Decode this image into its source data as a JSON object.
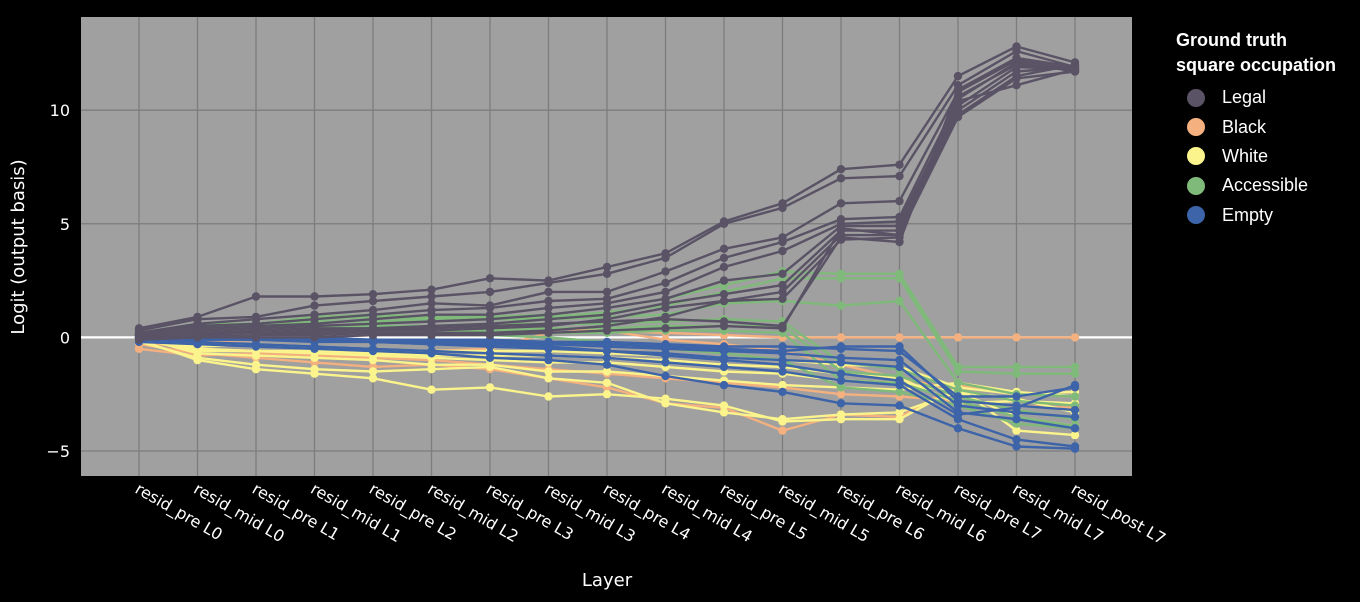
{
  "chart_data": {
    "type": "line",
    "xlabel": "Layer",
    "ylabel": "Logit (output basis)",
    "ylim": [
      -6.1,
      14.1
    ],
    "yticks": [
      -5,
      0,
      5,
      10
    ],
    "ytick_labels": [
      "−5",
      "0",
      "5",
      "10"
    ],
    "zero_line": true,
    "grid": true,
    "legend_position": "right",
    "categories": [
      "resid_pre L0",
      "resid_mid L0",
      "resid_pre L1",
      "resid_mid L1",
      "resid_pre L2",
      "resid_mid L2",
      "resid_pre L3",
      "resid_mid L3",
      "resid_pre L4",
      "resid_mid L4",
      "resid_pre L5",
      "resid_mid L5",
      "resid_pre L6",
      "resid_mid L6",
      "resid_pre L7",
      "resid_mid L7",
      "resid_post L7"
    ],
    "legend": {
      "title_lines": [
        "Ground truth",
        "square occupation"
      ],
      "items": [
        {
          "label": "Legal",
          "color": "#5a5366"
        },
        {
          "label": "Black",
          "color": "#f4b07e"
        },
        {
          "label": "White",
          "color": "#fbf48c"
        },
        {
          "label": "Accessible",
          "color": "#7fba7a"
        },
        {
          "label": "Empty",
          "color": "#3d63a8"
        }
      ]
    },
    "series": [
      {
        "group": "Black",
        "values": [
          -0.5,
          -0.8,
          -0.7,
          -0.8,
          -0.9,
          -1.0,
          -1.2,
          -1.4,
          -1.6,
          -1.8,
          -2.0,
          -2.2,
          -2.5,
          -2.6,
          -2.8,
          -3.0,
          -3.1
        ]
      },
      {
        "group": "Black",
        "values": [
          -0.3,
          -0.7,
          -0.9,
          -1.1,
          -1.3,
          -1.2,
          -1.4,
          -1.8,
          -2.2,
          -2.9,
          -3.1,
          -4.1,
          -3.4,
          -3.5,
          -2.1,
          -2.5,
          -2.6
        ]
      },
      {
        "group": "Black",
        "values": [
          -0.2,
          -0.5,
          -0.6,
          -0.7,
          -0.8,
          -0.6,
          -0.5,
          0.2,
          0.3,
          -0.1,
          -0.3,
          -0.6,
          -1.2,
          -1.8,
          -2.3,
          -2.8,
          -3.0
        ]
      },
      {
        "group": "Black",
        "values": [
          -0.1,
          -0.2,
          -0.1,
          0.0,
          0.1,
          0.2,
          0.3,
          0.4,
          0.3,
          0.2,
          0.1,
          0.0,
          0.0,
          0.0,
          0.0,
          0.0,
          0.0
        ]
      },
      {
        "group": "White",
        "values": [
          -0.1,
          -1.0,
          -1.4,
          -1.6,
          -1.8,
          -2.3,
          -2.2,
          -2.6,
          -2.5,
          -2.7,
          -3.0,
          -3.7,
          -3.6,
          -3.6,
          -2.2,
          -4.1,
          -4.3
        ]
      },
      {
        "group": "White",
        "values": [
          -0.2,
          -0.9,
          -1.2,
          -1.4,
          -1.5,
          -1.4,
          -1.3,
          -1.8,
          -2.0,
          -2.9,
          -3.3,
          -3.6,
          -3.4,
          -3.3,
          -2.4,
          -3.5,
          -3.9
        ]
      },
      {
        "group": "White",
        "values": [
          0.0,
          -0.7,
          -0.8,
          -0.9,
          -1.0,
          -1.2,
          -1.2,
          -1.5,
          -1.5,
          -1.7,
          -1.9,
          -2.1,
          -2.2,
          -2.3,
          -2.0,
          -2.4,
          -2.6
        ]
      },
      {
        "group": "White",
        "values": [
          0.1,
          -0.5,
          -0.6,
          -0.7,
          -0.8,
          -0.9,
          -1.0,
          -1.1,
          -1.1,
          -1.3,
          -1.5,
          -1.6,
          -1.9,
          -2.0,
          -2.4,
          -2.7,
          -3.3
        ]
      },
      {
        "group": "White",
        "values": [
          0.0,
          -0.6,
          -0.6,
          -0.6,
          -0.7,
          -0.8,
          -0.8,
          -0.8,
          -0.9,
          -1.0,
          -1.2,
          -1.3,
          -1.6,
          -1.8,
          -2.9,
          -2.8,
          -2.9
        ]
      },
      {
        "group": "White",
        "values": [
          -0.1,
          -0.4,
          -0.3,
          -0.4,
          -0.5,
          -0.6,
          -0.6,
          -0.6,
          -0.7,
          -0.8,
          -0.9,
          -1.0,
          -1.2,
          -1.3,
          -2.2,
          -2.5,
          -2.4
        ]
      },
      {
        "group": "Accessible",
        "values": [
          0.2,
          0.5,
          0.6,
          0.9,
          1.0,
          0.9,
          0.9,
          1.0,
          1.3,
          1.7,
          2.3,
          2.9,
          2.8,
          2.8,
          -1.3,
          -1.3,
          -1.3
        ]
      },
      {
        "group": "Accessible",
        "values": [
          0.1,
          0.4,
          0.5,
          0.8,
          0.9,
          0.8,
          0.8,
          0.9,
          1.1,
          1.4,
          2.0,
          2.6,
          2.6,
          2.6,
          -1.5,
          -1.6,
          -1.6
        ]
      },
      {
        "group": "Accessible",
        "values": [
          0.2,
          0.6,
          0.6,
          0.7,
          0.7,
          0.8,
          0.8,
          0.8,
          0.9,
          1.0,
          1.5,
          1.6,
          1.4,
          1.6,
          -2.0,
          -2.5,
          -2.6
        ]
      },
      {
        "group": "Accessible",
        "values": [
          0.1,
          0.3,
          0.4,
          0.5,
          0.5,
          0.5,
          0.6,
          0.6,
          0.6,
          0.7,
          0.8,
          0.7,
          -1.1,
          -1.4,
          -2.3,
          -2.8,
          -3.0
        ]
      },
      {
        "group": "Accessible",
        "values": [
          0.1,
          0.3,
          0.3,
          0.4,
          0.4,
          0.3,
          0.3,
          0.4,
          0.4,
          0.5,
          0.5,
          0.5,
          -1.5,
          -1.7,
          -2.6,
          -3.2,
          -3.6
        ]
      },
      {
        "group": "Accessible",
        "values": [
          0.0,
          0.2,
          0.2,
          0.3,
          0.3,
          0.2,
          0.2,
          0.2,
          0.2,
          0.3,
          0.3,
          0.2,
          -1.9,
          -2.0,
          -2.8,
          -3.5,
          -3.9
        ]
      },
      {
        "group": "Accessible",
        "values": [
          0.1,
          0.2,
          0.1,
          0.2,
          0.2,
          0.1,
          0.1,
          0.0,
          -0.2,
          -0.5,
          -0.7,
          -1.0,
          -2.2,
          -2.4,
          -3.0,
          -3.8,
          -4.0
        ]
      },
      {
        "group": "Empty",
        "values": [
          0.0,
          -0.1,
          -0.1,
          -0.2,
          -0.2,
          -0.3,
          -0.4,
          -0.5,
          -0.6,
          -0.7,
          -0.9,
          -1.0,
          -1.1,
          -1.3,
          -3.3,
          -3.6,
          -4.0
        ]
      },
      {
        "group": "Empty",
        "values": [
          -0.1,
          -0.2,
          -0.3,
          -0.4,
          -0.5,
          -0.6,
          -0.7,
          -0.8,
          -0.9,
          -1.1,
          -1.3,
          -1.5,
          -1.9,
          -2.1,
          -3.6,
          -4.5,
          -4.8
        ]
      },
      {
        "group": "Empty",
        "values": [
          0.0,
          0.0,
          -0.1,
          -0.1,
          -0.2,
          -0.2,
          -0.3,
          -0.3,
          -0.4,
          -0.5,
          -0.6,
          -0.7,
          -0.9,
          -1.0,
          -3.0,
          -3.3,
          -3.5
        ]
      },
      {
        "group": "Empty",
        "values": [
          0.1,
          0.1,
          0.0,
          0.0,
          -0.1,
          -0.1,
          -0.1,
          -0.2,
          -0.2,
          -0.3,
          -0.4,
          -0.4,
          -0.5,
          -0.6,
          -2.6,
          -2.6,
          -2.2
        ]
      },
      {
        "group": "Empty",
        "values": [
          -0.2,
          -0.3,
          -0.4,
          -0.5,
          -0.6,
          -0.7,
          -0.9,
          -1.0,
          -1.2,
          -1.7,
          -2.1,
          -2.4,
          -2.9,
          -3.0,
          -4.0,
          -4.8,
          -4.9
        ]
      },
      {
        "group": "Empty",
        "values": [
          0.0,
          -0.1,
          -0.1,
          -0.1,
          -0.2,
          -0.3,
          -0.3,
          -0.4,
          -0.6,
          -0.8,
          -1.0,
          -1.2,
          -1.6,
          -1.9,
          -3.4,
          -3.1,
          -2.1
        ]
      },
      {
        "group": "Empty",
        "values": [
          0.1,
          0.0,
          0.0,
          -0.1,
          -0.1,
          -0.1,
          -0.2,
          -0.2,
          -0.3,
          -0.4,
          -0.5,
          -0.6,
          -0.4,
          -0.4,
          -2.8,
          -3.0,
          -3.2
        ]
      },
      {
        "group": "Legal",
        "values": [
          0.4,
          0.9,
          1.8,
          1.8,
          1.9,
          2.1,
          2.6,
          2.5,
          3.1,
          3.7,
          5.1,
          5.9,
          7.4,
          7.6,
          11.5,
          12.8,
          12.1
        ]
      },
      {
        "group": "Legal",
        "values": [
          0.3,
          0.8,
          0.9,
          1.4,
          1.6,
          1.8,
          2.0,
          2.4,
          2.8,
          3.5,
          5.0,
          5.7,
          7.0,
          7.1,
          11.1,
          12.6,
          11.9
        ]
      },
      {
        "group": "Legal",
        "values": [
          0.2,
          0.6,
          0.8,
          1.0,
          1.2,
          1.5,
          1.4,
          2.0,
          2.0,
          2.9,
          3.9,
          4.4,
          5.9,
          6.0,
          10.8,
          12.2,
          11.8
        ]
      },
      {
        "group": "Legal",
        "values": [
          0.1,
          0.5,
          0.6,
          0.8,
          1.0,
          1.2,
          1.3,
          1.6,
          1.7,
          2.4,
          3.5,
          4.2,
          5.2,
          5.3,
          10.5,
          12.1,
          11.7
        ]
      },
      {
        "group": "Legal",
        "values": [
          0.2,
          0.4,
          0.5,
          0.6,
          0.8,
          1.0,
          1.0,
          1.3,
          1.5,
          2.0,
          3.1,
          3.8,
          5.0,
          5.1,
          10.2,
          11.9,
          11.8
        ]
      },
      {
        "group": "Legal",
        "values": [
          0.1,
          0.3,
          0.4,
          0.5,
          0.6,
          0.7,
          0.8,
          1.0,
          1.3,
          1.7,
          2.5,
          2.8,
          4.9,
          4.9,
          10.0,
          11.7,
          11.9
        ]
      },
      {
        "group": "Legal",
        "values": [
          0.0,
          0.2,
          0.3,
          0.4,
          0.4,
          0.5,
          0.6,
          0.8,
          1.0,
          1.5,
          1.9,
          2.3,
          4.7,
          4.7,
          9.8,
          11.5,
          12.0
        ]
      },
      {
        "group": "Legal",
        "values": [
          0.0,
          0.1,
          0.2,
          0.2,
          0.3,
          0.3,
          0.4,
          0.5,
          0.8,
          1.3,
          1.6,
          2.0,
          4.5,
          4.5,
          9.7,
          11.4,
          11.7
        ]
      },
      {
        "group": "Legal",
        "values": [
          -0.1,
          0.0,
          0.1,
          0.1,
          0.2,
          0.2,
          0.2,
          0.3,
          0.5,
          0.9,
          1.6,
          1.7,
          4.3,
          4.4,
          10.4,
          11.1,
          11.8
        ]
      },
      {
        "group": "Legal",
        "values": [
          0.1,
          0.2,
          0.2,
          0.3,
          0.4,
          0.4,
          0.5,
          0.6,
          0.7,
          0.8,
          0.7,
          0.5,
          4.4,
          4.2,
          10.9,
          12.3,
          11.9
        ]
      },
      {
        "group": "Legal",
        "values": [
          0.0,
          0.0,
          0.0,
          0.0,
          0.1,
          0.1,
          0.1,
          0.2,
          0.3,
          0.4,
          0.5,
          0.4,
          4.8,
          4.5,
          10.6,
          12.0,
          11.8
        ]
      }
    ]
  }
}
